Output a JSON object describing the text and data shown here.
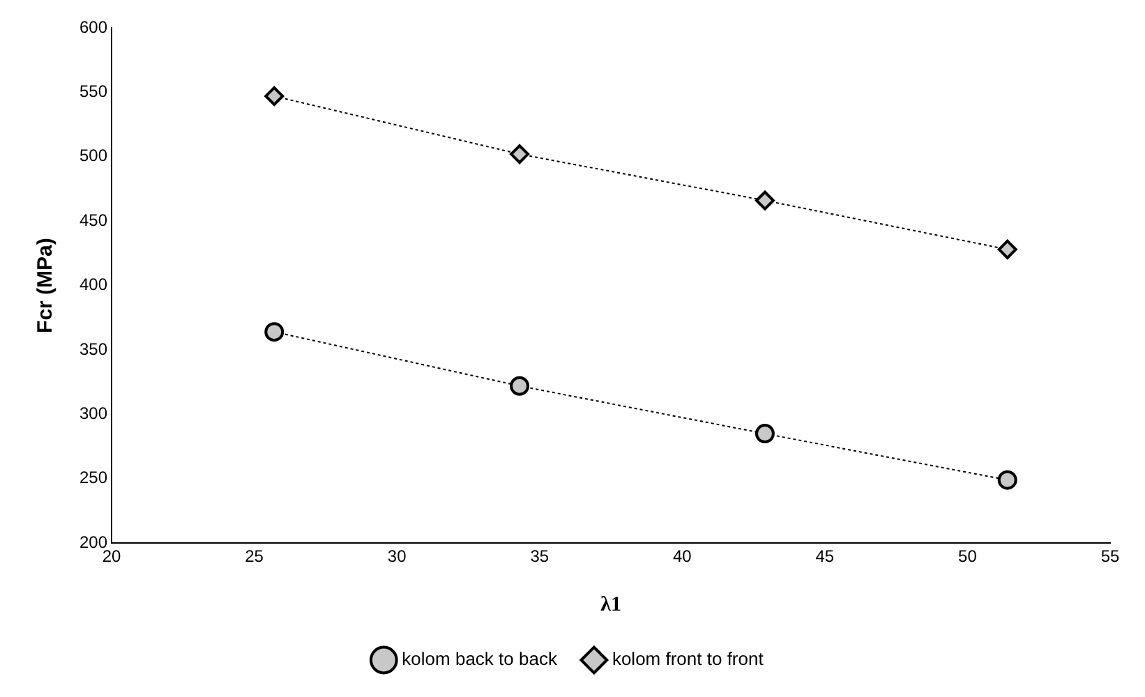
{
  "chart_data": {
    "type": "line",
    "xlabel": "λ1",
    "ylabel": "Fcr (MPa)",
    "x": [
      25.7,
      34.3,
      42.9,
      51.4
    ],
    "series": [
      {
        "name": "kolom back to back",
        "color": "#000000",
        "marker": "circle",
        "values": [
          364,
          322,
          285,
          249
        ]
      },
      {
        "name": "kolom front to front",
        "color": "#000000",
        "marker": "diamond",
        "values": [
          547,
          502,
          466,
          428
        ]
      }
    ],
    "xlim": [
      20,
      55
    ],
    "xticks": [
      20,
      25,
      30,
      35,
      40,
      45,
      50,
      55
    ],
    "ylim": [
      200,
      600
    ],
    "yticks": [
      200,
      250,
      300,
      350,
      400,
      450,
      500,
      550,
      600
    ],
    "grid": false,
    "legend": "bottom",
    "line_style": "dotted"
  }
}
